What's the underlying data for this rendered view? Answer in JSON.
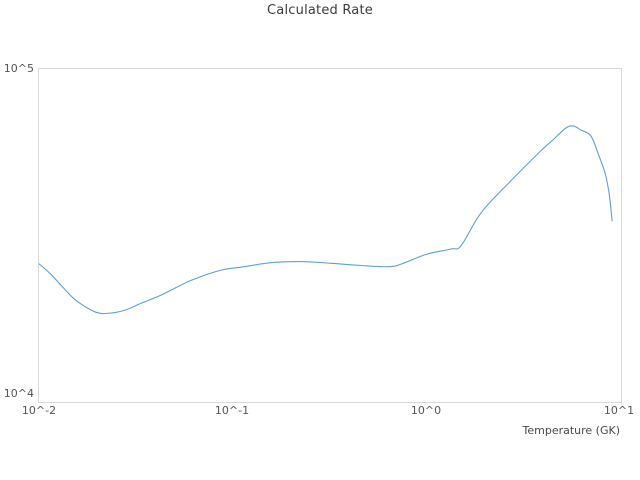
{
  "chart_data": {
    "type": "line",
    "title": "Calculated Rate",
    "xlabel": "Temperature (GK)",
    "ylabel": "",
    "x_scale": "log",
    "y_scale": "log",
    "x_range": [
      0.01,
      10
    ],
    "y_range": [
      10000,
      100000
    ],
    "x_tick_labels": [
      "10^-2",
      "10^-1",
      "10^0",
      "10^1"
    ],
    "y_tick_labels": [
      "10^4",
      "10^5"
    ],
    "grid": false,
    "legend": false,
    "line_color": "#5f9fdc",
    "frame_color": "#d9d9d9",
    "series": [
      {
        "name": "Calculated Rate",
        "points": [
          [
            0.01,
            26000
          ],
          [
            0.0115,
            24200
          ],
          [
            0.013,
            22400
          ],
          [
            0.0155,
            20200
          ],
          [
            0.0197,
            18600
          ],
          [
            0.0235,
            18500
          ],
          [
            0.028,
            18900
          ],
          [
            0.033,
            19700
          ],
          [
            0.043,
            21000
          ],
          [
            0.061,
            23200
          ],
          [
            0.087,
            24900
          ],
          [
            0.11,
            25400
          ],
          [
            0.157,
            26200
          ],
          [
            0.224,
            26400
          ],
          [
            0.32,
            26100
          ],
          [
            0.457,
            25700
          ],
          [
            0.65,
            25500
          ],
          [
            0.78,
            26300
          ],
          [
            1.0,
            27800
          ],
          [
            1.33,
            28800
          ],
          [
            1.5,
            29500
          ],
          [
            1.9,
            37000
          ],
          [
            2.7,
            46100
          ],
          [
            3.9,
            57100
          ],
          [
            4.4,
            60800
          ],
          [
            5.2,
            66500
          ],
          [
            5.7,
            67400
          ],
          [
            6.2,
            65600
          ],
          [
            7.0,
            62900
          ],
          [
            7.7,
            54800
          ],
          [
            8.3,
            48400
          ],
          [
            8.7,
            42000
          ],
          [
            9.0,
            35000
          ]
        ]
      }
    ]
  }
}
